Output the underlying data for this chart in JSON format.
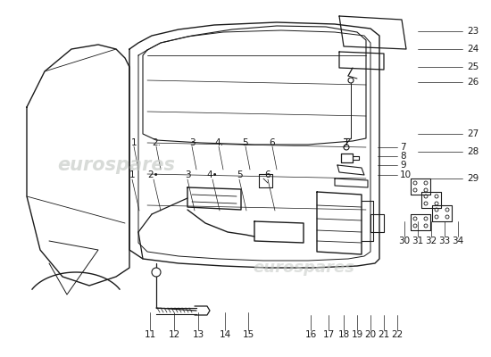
{
  "bg_color": "#ffffff",
  "watermark1_color": "#c8ccc8",
  "watermark2_color": "#c8ccc8",
  "line_color": "#1a1a1a",
  "label_color": "#1a1a1a",
  "figsize": [
    5.5,
    4.0
  ],
  "dpi": 100
}
